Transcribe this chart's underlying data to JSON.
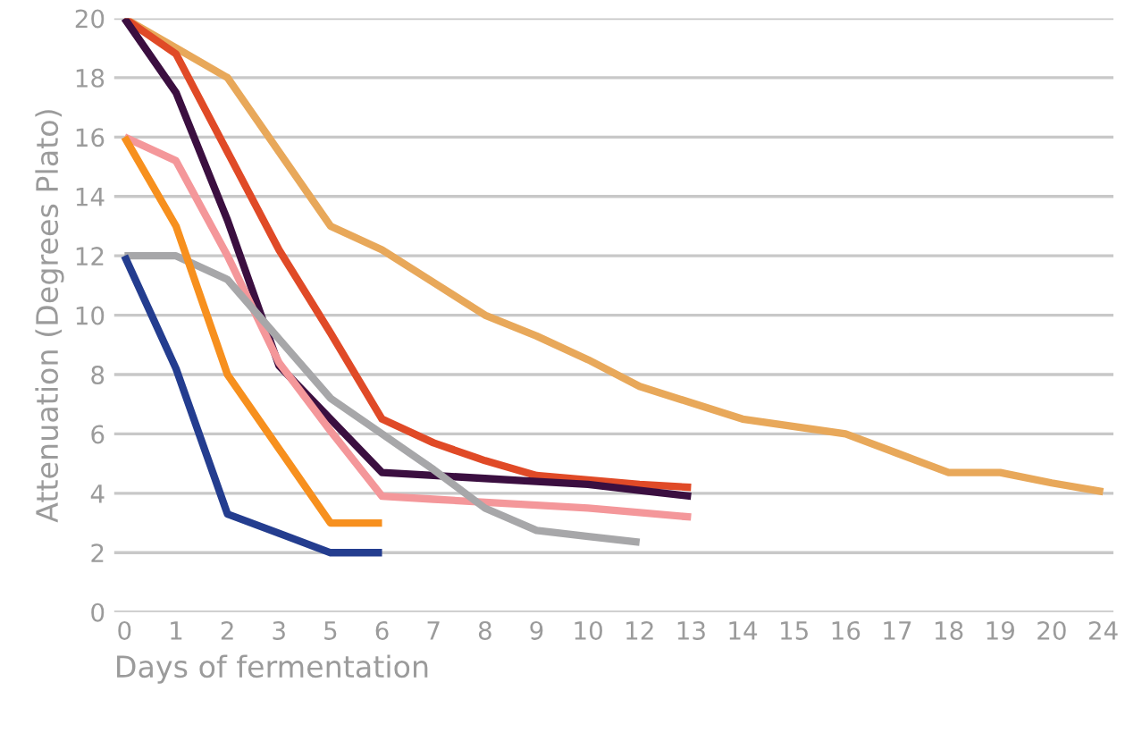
{
  "chart_data": {
    "type": "line",
    "xlabel": "Days of fermentation",
    "ylabel": "Attenuation (Degrees Plato)",
    "categories": [
      "0",
      "1",
      "2",
      "3",
      "5",
      "6",
      "7",
      "8",
      "9",
      "10",
      "12",
      "13",
      "14",
      "15",
      "16",
      "17",
      "18",
      "19",
      "20",
      "24"
    ],
    "series": [
      {
        "color": "#e8a85a",
        "values": [
          20,
          19,
          18,
          15.5,
          13,
          12.2,
          11.1,
          10,
          9.3,
          8.5,
          7.6,
          7.05,
          6.5,
          6.25,
          6,
          5.35,
          4.7,
          4.7,
          4.35,
          4.05
        ]
      },
      {
        "color": "#e04a27",
        "values": [
          20,
          18.8,
          15.5,
          12.2,
          9.4,
          6.5,
          5.7,
          5.1,
          4.6,
          4.45,
          4.3,
          4.2,
          null,
          null,
          null,
          null,
          null,
          null,
          null,
          null
        ]
      },
      {
        "color": "#3b0f40",
        "values": [
          20,
          17.5,
          13.2,
          8.3,
          6.5,
          4.7,
          4.6,
          4.5,
          4.4,
          4.3,
          4.1,
          3.9,
          null,
          null,
          null,
          null,
          null,
          null,
          null,
          null
        ]
      },
      {
        "color": "#f4979a",
        "values": [
          16,
          15.2,
          12,
          8.4,
          6.1,
          3.9,
          3.8,
          3.7,
          3.6,
          3.5,
          3.35,
          3.2,
          null,
          null,
          null,
          null,
          null,
          null,
          null,
          null
        ]
      },
      {
        "color": "#a7a7a9",
        "values": [
          12,
          12,
          11.2,
          9.2,
          7.2,
          6,
          4.8,
          3.5,
          2.75,
          2.55,
          2.35,
          null,
          null,
          null,
          null,
          null,
          null,
          null,
          null,
          null
        ]
      },
      {
        "color": "#f7901e",
        "values": [
          16,
          13,
          8,
          5.5,
          3,
          3,
          null,
          null,
          null,
          null,
          null,
          null,
          null,
          null,
          null,
          null,
          null,
          null,
          null,
          null
        ]
      },
      {
        "color": "#243d8f",
        "values": [
          12,
          8.2,
          3.3,
          2.65,
          2,
          2,
          null,
          null,
          null,
          null,
          null,
          null,
          null,
          null,
          null,
          null,
          null,
          null,
          null,
          null
        ]
      }
    ],
    "ylim": [
      0,
      20
    ],
    "yticks": [
      0,
      2,
      4,
      6,
      8,
      10,
      12,
      14,
      16,
      18,
      20
    ],
    "grid": "y"
  }
}
